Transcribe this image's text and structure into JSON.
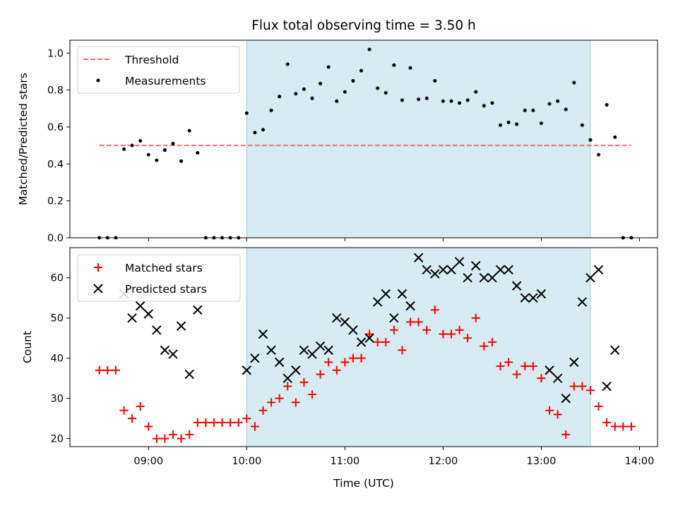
{
  "chart_data": [
    {
      "type": "scatter",
      "title": "Flux total observing time = 3.50 h",
      "xlabel": "",
      "ylabel": "Matched/Predicted stars",
      "ylim": [
        0,
        1.07
      ],
      "yticks": [
        "0.0",
        "0.2",
        "0.4",
        "0.6",
        "0.8",
        "1.0"
      ],
      "shaded_span": [
        "10:00",
        "13:30"
      ],
      "threshold": {
        "name": "Threshold",
        "value": 0.5,
        "x_range": [
          "08:30",
          "13:55"
        ],
        "color": "#f07070"
      },
      "legend": {
        "position": "upper-left",
        "entries": [
          "Threshold",
          "Measurements"
        ]
      },
      "series": [
        {
          "name": "Measurements",
          "marker": "dot",
          "color": "#000000",
          "x": [
            "08:30",
            "08:35",
            "08:40",
            "08:45",
            "08:50",
            "08:55",
            "09:00",
            "09:05",
            "09:10",
            "09:15",
            "09:20",
            "09:25",
            "09:30",
            "09:35",
            "09:40",
            "09:45",
            "09:50",
            "09:55",
            "10:00",
            "10:05",
            "10:10",
            "10:15",
            "10:20",
            "10:25",
            "10:30",
            "10:35",
            "10:40",
            "10:45",
            "10:50",
            "10:55",
            "11:00",
            "11:05",
            "11:10",
            "11:15",
            "11:20",
            "11:25",
            "11:30",
            "11:35",
            "11:40",
            "11:45",
            "11:50",
            "11:55",
            "12:00",
            "12:05",
            "12:10",
            "12:15",
            "12:20",
            "12:25",
            "12:30",
            "12:35",
            "12:40",
            "12:45",
            "12:50",
            "12:55",
            "13:00",
            "13:05",
            "13:10",
            "13:15",
            "13:20",
            "13:25",
            "13:30",
            "13:35",
            "13:40",
            "13:45",
            "13:50",
            "13:55"
          ],
          "y": [
            0.0,
            0.0,
            0.0,
            0.48,
            0.5,
            0.525,
            0.45,
            0.42,
            0.475,
            0.51,
            0.415,
            0.58,
            0.46,
            0.0,
            0.0,
            0.0,
            0.0,
            0.0,
            0.675,
            0.57,
            0.585,
            0.69,
            0.765,
            0.94,
            0.78,
            0.805,
            0.755,
            0.835,
            0.925,
            0.74,
            0.79,
            0.85,
            0.905,
            1.02,
            0.81,
            0.785,
            0.935,
            0.745,
            0.92,
            0.75,
            0.755,
            0.85,
            0.74,
            0.74,
            0.73,
            0.745,
            0.79,
            0.715,
            0.73,
            0.61,
            0.625,
            0.615,
            0.69,
            0.69,
            0.62,
            0.725,
            0.74,
            0.695,
            0.84,
            0.61,
            0.53,
            0.45,
            0.72,
            0.545,
            0.0,
            0.0
          ]
        }
      ]
    },
    {
      "type": "scatter",
      "xlabel": "Time (UTC)",
      "ylabel": "Count",
      "ylim": [
        18,
        67.5
      ],
      "yticks": [
        "20",
        "30",
        "40",
        "50",
        "60"
      ],
      "xticks": [
        "09:00",
        "10:00",
        "11:00",
        "12:00",
        "13:00",
        "14:00"
      ],
      "shaded_span": [
        "10:00",
        "13:30"
      ],
      "legend": {
        "position": "upper-left",
        "entries": [
          "Matched stars",
          "Predicted stars"
        ]
      },
      "series": [
        {
          "name": "Matched stars",
          "marker": "plus",
          "color": "#ff0000",
          "x": [
            "08:30",
            "08:35",
            "08:40",
            "08:45",
            "08:50",
            "08:55",
            "09:00",
            "09:05",
            "09:10",
            "09:15",
            "09:20",
            "09:25",
            "09:30",
            "09:35",
            "09:40",
            "09:45",
            "09:50",
            "09:55",
            "10:00",
            "10:05",
            "10:10",
            "10:15",
            "10:20",
            "10:25",
            "10:30",
            "10:35",
            "10:40",
            "10:45",
            "10:50",
            "10:55",
            "11:00",
            "11:05",
            "11:10",
            "11:15",
            "11:20",
            "11:25",
            "11:30",
            "11:35",
            "11:40",
            "11:45",
            "11:50",
            "11:55",
            "12:00",
            "12:05",
            "12:10",
            "12:15",
            "12:20",
            "12:25",
            "12:30",
            "12:35",
            "12:40",
            "12:45",
            "12:50",
            "12:55",
            "13:00",
            "13:05",
            "13:10",
            "13:15",
            "13:20",
            "13:25",
            "13:30",
            "13:35",
            "13:40",
            "13:45",
            "13:50",
            "13:55"
          ],
          "y": [
            37,
            37,
            37,
            27,
            25,
            28,
            23,
            20,
            20,
            21,
            20,
            21,
            24,
            24,
            24,
            24,
            24,
            24,
            25,
            23,
            27,
            29,
            30,
            33,
            29,
            34,
            31,
            36,
            39,
            37,
            39,
            40,
            40,
            46,
            44,
            44,
            47,
            42,
            49,
            49,
            47,
            52,
            46,
            46,
            47,
            45,
            50,
            43,
            44,
            38,
            39,
            36,
            38,
            38,
            35,
            27,
            26,
            21,
            33,
            33,
            32,
            28,
            24,
            23,
            23,
            23
          ]
        },
        {
          "name": "Predicted stars",
          "marker": "x",
          "color": "#000000",
          "x": [
            "08:45",
            "08:50",
            "08:55",
            "09:00",
            "09:05",
            "09:10",
            "09:15",
            "09:20",
            "09:25",
            "09:30",
            "10:00",
            "10:05",
            "10:10",
            "10:15",
            "10:20",
            "10:25",
            "10:30",
            "10:35",
            "10:40",
            "10:45",
            "10:50",
            "10:55",
            "11:00",
            "11:05",
            "11:10",
            "11:15",
            "11:20",
            "11:25",
            "11:30",
            "11:35",
            "11:40",
            "11:45",
            "11:50",
            "11:55",
            "12:00",
            "12:05",
            "12:10",
            "12:15",
            "12:20",
            "12:25",
            "12:30",
            "12:35",
            "12:40",
            "12:45",
            "12:50",
            "12:55",
            "13:00",
            "13:05",
            "13:10",
            "13:15",
            "13:20",
            "13:25",
            "13:30",
            "13:35",
            "13:40",
            "13:45"
          ],
          "y": [
            56,
            50,
            53,
            51,
            47,
            42,
            41,
            48,
            36,
            52,
            37,
            40,
            46,
            42,
            39,
            35,
            37,
            42,
            41,
            43,
            42,
            50,
            49,
            47,
            44,
            45,
            54,
            56,
            50,
            56,
            53,
            65,
            62,
            61,
            62,
            62,
            64,
            60,
            63,
            60,
            60,
            62,
            62,
            58,
            55,
            55,
            56,
            37,
            35,
            30,
            39,
            54,
            60,
            62,
            33,
            42
          ]
        }
      ]
    }
  ]
}
